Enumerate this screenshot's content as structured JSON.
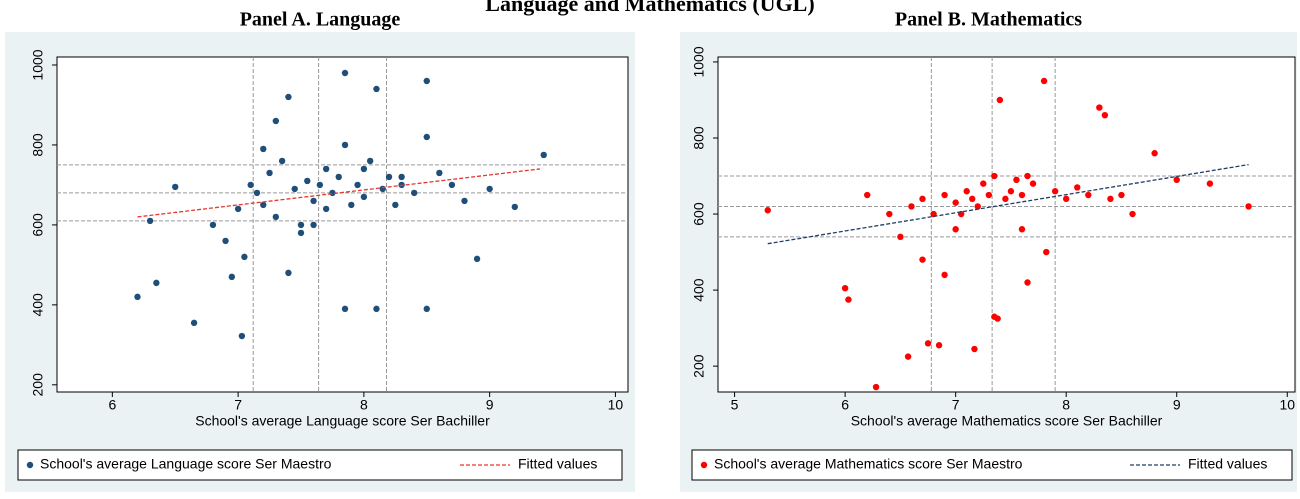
{
  "title": "Language and Mathematics (UGL)",
  "chart_data": [
    {
      "type": "scatter",
      "title": "Panel A. Language",
      "x_label": "School's average Language score Ser Bachiller",
      "xlim": [
        5.56,
        10.1
      ],
      "xticks": [
        6,
        7,
        8,
        9,
        10
      ],
      "ylim": [
        182,
        1020
      ],
      "yticks": [
        200,
        400,
        600,
        800,
        1000
      ],
      "hlines": [
        750,
        680,
        610
      ],
      "vlines": [
        7.12,
        7.64,
        8.18
      ],
      "series": [
        {
          "name": "School's average Language score Ser Maestro",
          "color": "#1f4e79",
          "x": [
            6.2,
            6.35,
            6.65,
            7.03,
            6.5,
            6.3,
            6.8,
            6.9,
            7.0,
            7.05,
            7.1,
            7.15,
            7.2,
            7.25,
            7.3,
            7.35,
            7.4,
            7.45,
            7.5,
            7.55,
            7.6,
            7.65,
            7.7,
            7.75,
            7.8,
            7.85,
            7.9,
            7.95,
            8.0,
            8.05,
            8.1,
            8.15,
            8.2,
            8.25,
            8.3,
            8.4,
            8.5,
            8.6,
            8.7,
            8.8,
            8.9,
            9.0,
            9.2,
            9.43,
            7.85,
            8.5,
            8.1,
            7.4,
            8.5,
            7.85,
            7.6,
            7.3,
            7.5,
            7.7,
            8.0,
            8.3,
            6.95,
            7.2
          ],
          "values": [
            420,
            455,
            355,
            322,
            695,
            610,
            600,
            560,
            640,
            520,
            700,
            680,
            650,
            730,
            620,
            760,
            920,
            690,
            600,
            710,
            660,
            700,
            740,
            680,
            720,
            980,
            650,
            700,
            670,
            760,
            940,
            690,
            720,
            650,
            700,
            680,
            960,
            730,
            700,
            660,
            515,
            690,
            645,
            775,
            390,
            390,
            390,
            480,
            820,
            800,
            600,
            860,
            580,
            640,
            740,
            720,
            470,
            790
          ]
        }
      ],
      "fit": {
        "name": "Fitted values",
        "color": "#e8362e",
        "x": [
          6.2,
          9.4
        ],
        "values": [
          620,
          740
        ]
      }
    },
    {
      "type": "scatter",
      "title": "Panel B. Mathematics",
      "x_label": "School's average Mathematics score Ser Bachiller",
      "xlim": [
        4.85,
        10.07
      ],
      "xticks": [
        5,
        6,
        7,
        8,
        9,
        10
      ],
      "ylim": [
        132,
        1013
      ],
      "yticks": [
        200,
        400,
        600,
        800,
        1000
      ],
      "hlines": [
        700,
        620,
        540
      ],
      "vlines": [
        6.78,
        7.33,
        7.9
      ],
      "series": [
        {
          "name": "School's average Mathematics score Ser Maestro",
          "color": "#ff0000",
          "x": [
            5.3,
            6.0,
            6.03,
            6.28,
            6.57,
            6.75,
            6.85,
            7.17,
            6.2,
            6.4,
            6.5,
            6.6,
            6.7,
            6.8,
            6.9,
            7.0,
            7.05,
            7.1,
            7.15,
            7.2,
            7.25,
            7.3,
            7.35,
            7.4,
            7.45,
            7.5,
            7.55,
            7.6,
            7.65,
            7.7,
            7.8,
            7.9,
            8.0,
            8.1,
            8.2,
            8.3,
            8.4,
            8.5,
            8.6,
            8.8,
            9.0,
            9.3,
            9.65,
            7.38,
            7.82,
            8.35,
            7.65,
            6.9,
            7.35,
            7.6,
            6.7,
            7.0
          ],
          "values": [
            610,
            405,
            375,
            145,
            225,
            260,
            255,
            245,
            650,
            600,
            540,
            620,
            640,
            600,
            650,
            630,
            600,
            660,
            640,
            620,
            680,
            650,
            700,
            900,
            640,
            660,
            690,
            650,
            700,
            680,
            950,
            660,
            640,
            670,
            650,
            880,
            640,
            650,
            600,
            760,
            690,
            680,
            620,
            325,
            500,
            860,
            420,
            440,
            330,
            560,
            480,
            560
          ]
        }
      ],
      "fit": {
        "name": "Fitted values",
        "color": "#1f3f66",
        "x": [
          5.3,
          9.65
        ],
        "values": [
          522,
          730
        ]
      }
    }
  ]
}
